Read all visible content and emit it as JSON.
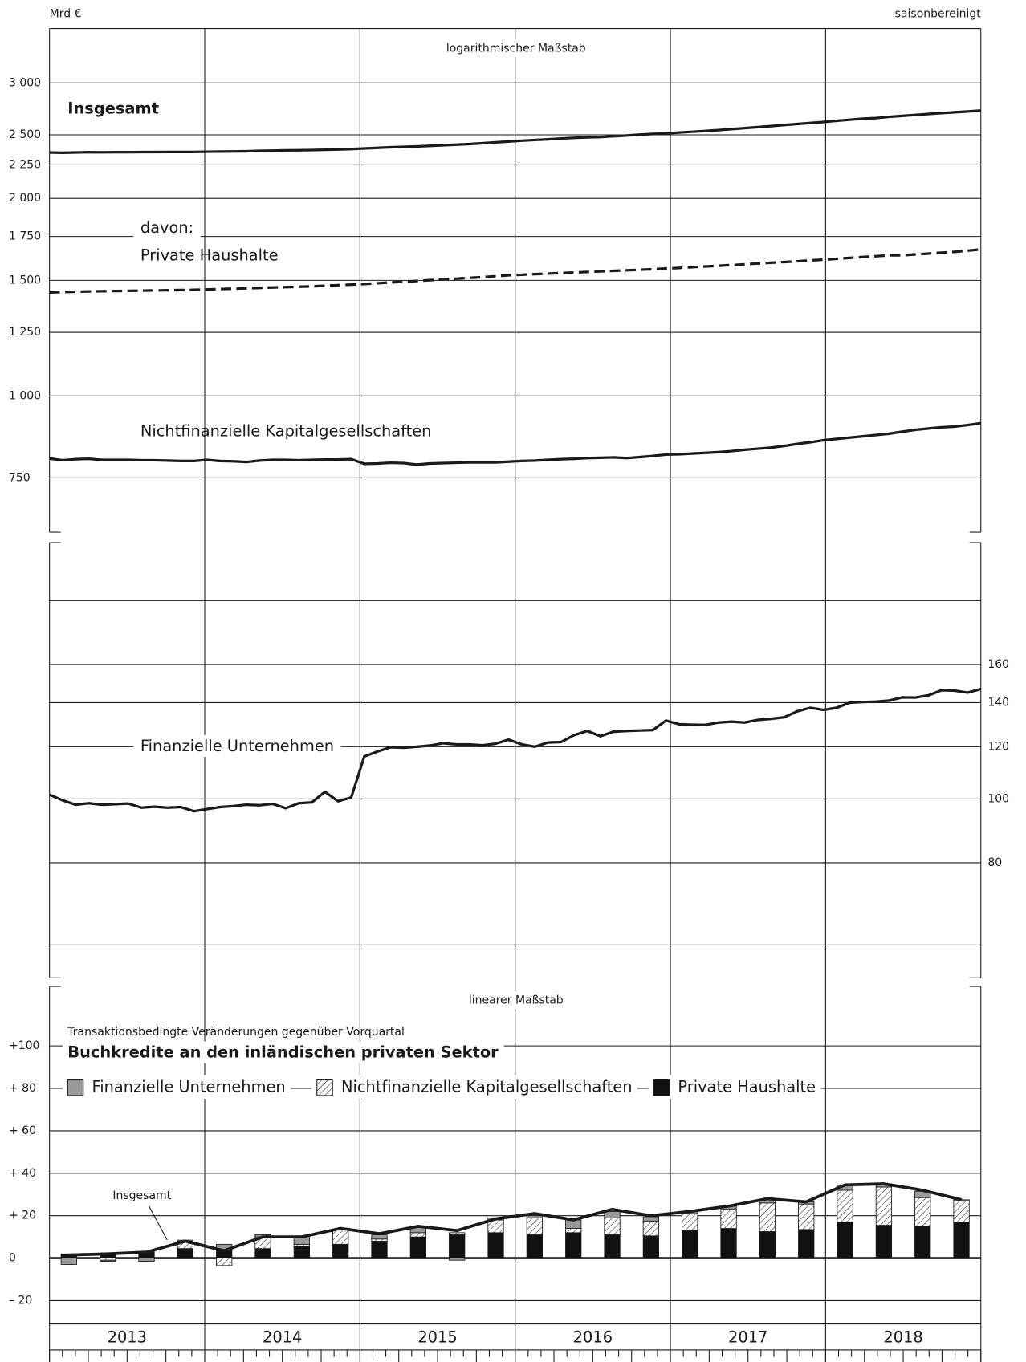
{
  "header": {
    "unit": "Mrd €",
    "note": "saisonbereinigt"
  },
  "chart_data": [
    {
      "type": "line",
      "scale_label": "logarithmischer Maßstab",
      "log_scale": true,
      "y_axis_side": "left",
      "annotation": "davon:",
      "x": [
        "2013-01",
        "2013-02",
        "2013-03",
        "2013-04",
        "2013-05",
        "2013-06",
        "2013-07",
        "2013-08",
        "2013-09",
        "2013-10",
        "2013-11",
        "2013-12",
        "2014-01",
        "2014-02",
        "2014-03",
        "2014-04",
        "2014-05",
        "2014-06",
        "2014-07",
        "2014-08",
        "2014-09",
        "2014-10",
        "2014-11",
        "2014-12",
        "2015-01",
        "2015-02",
        "2015-03",
        "2015-04",
        "2015-05",
        "2015-06",
        "2015-07",
        "2015-08",
        "2015-09",
        "2015-10",
        "2015-11",
        "2015-12",
        "2016-01",
        "2016-02",
        "2016-03",
        "2016-04",
        "2016-05",
        "2016-06",
        "2016-07",
        "2016-08",
        "2016-09",
        "2016-10",
        "2016-11",
        "2016-12",
        "2017-01",
        "2017-02",
        "2017-03",
        "2017-04",
        "2017-05",
        "2017-06",
        "2017-07",
        "2017-08",
        "2017-09",
        "2017-10",
        "2017-11",
        "2017-12",
        "2018-01",
        "2018-02",
        "2018-03",
        "2018-04",
        "2018-05",
        "2018-06",
        "2018-07",
        "2018-08",
        "2018-09",
        "2018-10",
        "2018-11",
        "2018-12"
      ],
      "ylim": [
        620,
        3630
      ],
      "yticks": [
        750,
        {
          "value": 1000,
          "label": "1 000"
        },
        {
          "value": 1250,
          "label": "1 250"
        },
        {
          "value": 1500,
          "label": "1 500"
        },
        {
          "value": 1750,
          "label": "1 750"
        },
        {
          "value": 2000,
          "label": "2 000"
        },
        {
          "value": 2250,
          "label": "2 250"
        },
        {
          "value": 2500,
          "label": "2 500"
        },
        {
          "value": 3000,
          "label": "3 000"
        }
      ],
      "series": [
        {
          "name": "Insgesamt",
          "color": "#1a1a1a",
          "dashed": false,
          "values": [
            2350,
            2347,
            2350,
            2352,
            2351,
            2352,
            2352,
            2353,
            2353,
            2354,
            2354,
            2354,
            2356,
            2357,
            2358,
            2360,
            2363,
            2365,
            2367,
            2368,
            2370,
            2372,
            2375,
            2378,
            2383,
            2388,
            2393,
            2397,
            2400,
            2405,
            2410,
            2415,
            2420,
            2427,
            2435,
            2442,
            2449,
            2455,
            2461,
            2468,
            2474,
            2478,
            2481,
            2488,
            2494,
            2502,
            2508,
            2513,
            2520,
            2527,
            2534,
            2542,
            2551,
            2560,
            2569,
            2578,
            2588,
            2597,
            2606,
            2615,
            2626,
            2636,
            2646,
            2651,
            2663,
            2672,
            2681,
            2690,
            2698,
            2706,
            2714,
            2722
          ]
        },
        {
          "name": "Private Haushalte",
          "color": "#1a1a1a",
          "dashed": true,
          "values": [
            1438,
            1440,
            1441,
            1443,
            1444,
            1445,
            1446,
            1447,
            1448,
            1449,
            1450,
            1451,
            1453,
            1455,
            1457,
            1459,
            1461,
            1463,
            1465,
            1467,
            1469,
            1472,
            1475,
            1478,
            1481,
            1485,
            1489,
            1493,
            1497,
            1501,
            1505,
            1509,
            1513,
            1517,
            1522,
            1527,
            1530,
            1533,
            1536,
            1539,
            1542,
            1545,
            1548,
            1551,
            1554,
            1557,
            1560,
            1564,
            1567,
            1571,
            1575,
            1579,
            1583,
            1587,
            1592,
            1596,
            1600,
            1604,
            1609,
            1613,
            1618,
            1623,
            1628,
            1633,
            1638,
            1638,
            1643,
            1648,
            1653,
            1658,
            1665,
            1672
          ]
        },
        {
          "name": "Nichtfinanzielle Kapitalgesellschaften",
          "color": "#1a1a1a",
          "dashed": false,
          "values": [
            803,
            798,
            801,
            802,
            799,
            799,
            799,
            798,
            798,
            797,
            796,
            796,
            799,
            796,
            795,
            793,
            797,
            799,
            799,
            798,
            799,
            800,
            800,
            801,
            788,
            789,
            791,
            790,
            786,
            789,
            790,
            791,
            792,
            792,
            792,
            794,
            796,
            797,
            799,
            801,
            802,
            804,
            805,
            806,
            804,
            807,
            810,
            814,
            815,
            817,
            819,
            821,
            824,
            828,
            831,
            834,
            839,
            845,
            850,
            856,
            860,
            864,
            868,
            872,
            876,
            882,
            888,
            892,
            896,
            898,
            903,
            909
          ]
        }
      ]
    },
    {
      "type": "line",
      "log_scale": true,
      "y_axis_side": "right",
      "x": [
        "2013-01",
        "2013-02",
        "2013-03",
        "2013-04",
        "2013-05",
        "2013-06",
        "2013-07",
        "2013-08",
        "2013-09",
        "2013-10",
        "2013-11",
        "2013-12",
        "2014-01",
        "2014-02",
        "2014-03",
        "2014-04",
        "2014-05",
        "2014-06",
        "2014-07",
        "2014-08",
        "2014-09",
        "2014-10",
        "2014-11",
        "2014-12",
        "2015-01",
        "2015-02",
        "2015-03",
        "2015-04",
        "2015-05",
        "2015-06",
        "2015-07",
        "2015-08",
        "2015-09",
        "2015-10",
        "2015-11",
        "2015-12",
        "2016-01",
        "2016-02",
        "2016-03",
        "2016-04",
        "2016-05",
        "2016-06",
        "2016-07",
        "2016-08",
        "2016-09",
        "2016-10",
        "2016-11",
        "2016-12",
        "2017-01",
        "2017-02",
        "2017-03",
        "2017-04",
        "2017-05",
        "2017-06",
        "2017-07",
        "2017-08",
        "2017-09",
        "2017-10",
        "2017-11",
        "2017-12",
        "2018-01",
        "2018-02",
        "2018-03",
        "2018-04",
        "2018-05",
        "2018-06",
        "2018-07",
        "2018-08",
        "2018-09",
        "2018-10",
        "2018-11",
        "2018-12"
      ],
      "ylim": [
        53.5,
        245
      ],
      "yticks": [
        80,
        100,
        120,
        140,
        160
      ],
      "minor_grid": [
        60,
        200
      ],
      "series": [
        {
          "name": "Finanzielle Unternehmen",
          "color": "#1a1a1a",
          "dashed": false,
          "values": [
            101.5,
            99.5,
            98,
            98.5,
            98,
            98.2,
            98.4,
            97,
            97.3,
            97,
            97.2,
            95.8,
            96.5,
            97.2,
            97.5,
            98,
            97.8,
            98.3,
            96.8,
            98.5,
            98.8,
            102.5,
            99.2,
            100.5,
            116,
            118,
            119.8,
            119.6,
            120,
            120.5,
            121.5,
            121,
            121,
            120.6,
            121.3,
            123,
            121,
            120,
            121.8,
            122,
            125,
            126.8,
            124.5,
            126.5,
            126.8,
            127,
            127.2,
            131.5,
            129.8,
            129.6,
            129.5,
            130.6,
            131,
            130.6,
            131.8,
            132.3,
            133,
            135.8,
            137.5,
            136.5,
            137.5,
            140,
            140.3,
            140.5,
            141,
            142.6,
            142.5,
            143.6,
            146.2,
            146,
            145,
            146.8
          ]
        }
      ]
    },
    {
      "type": "bar",
      "stacked": true,
      "scale_label": "linearer Maßstab",
      "subtitle": "Transaktionsbedingte Veränderungen gegenüber Vorquartal",
      "title": "Buchkredite an den inländischen privaten Sektor",
      "categories": [
        null,
        null,
        null,
        null,
        null,
        null,
        null,
        null,
        null,
        null,
        null,
        null,
        null,
        null,
        null,
        null,
        null,
        null,
        null,
        null,
        null,
        null,
        null,
        null
      ],
      "year_labels": [
        "2013",
        "2014",
        "2015",
        "2016",
        "2017",
        "2018"
      ],
      "ylim": [
        -31,
        128
      ],
      "yticks": [
        {
          "value": -20,
          "label": "– 20"
        },
        0,
        {
          "value": 20,
          "label": "+ 20"
        },
        {
          "value": 40,
          "label": "+ 40"
        },
        {
          "value": 60,
          "label": "+ 60"
        },
        {
          "value": 80,
          "label": "+ 80"
        },
        {
          "value": 100,
          "label": "+100"
        }
      ],
      "series": [
        {
          "name": "Finanzielle Unternehmen",
          "color": "#9a9a9a",
          "values": [
            -3,
            -0.5,
            -1.5,
            0.5,
            3,
            1,
            4,
            0,
            2,
            3,
            -1,
            1,
            1,
            4,
            3,
            2,
            1,
            1.5,
            1.5,
            1,
            2.5,
            1.5,
            3,
            0.5
          ]
        },
        {
          "name": "Nichtfinanzielle Kapitalgesellschaften",
          "color": "#1a1a1a",
          "pattern": "hatch",
          "values": [
            0,
            -1,
            0,
            3.5,
            -3.5,
            5.5,
            1,
            7,
            1,
            2,
            1,
            6,
            8,
            2,
            8,
            7,
            8,
            9,
            13.5,
            12,
            15,
            18,
            13.5,
            10
          ]
        },
        {
          "name": "Private Haushalte",
          "color": "#111111",
          "values": [
            2,
            2.5,
            3,
            4.5,
            3.5,
            4.5,
            5.5,
            6.5,
            8,
            10,
            11,
            12,
            11,
            12,
            11,
            10.5,
            13,
            14,
            12.5,
            13.5,
            17,
            15.5,
            15,
            17
          ]
        }
      ],
      "line": {
        "name": "Insgesamt",
        "color": "#1a1a1a",
        "values": [
          1.5,
          2,
          2.8,
          8,
          3.5,
          10,
          10,
          14,
          11.5,
          15,
          13,
          18.5,
          21,
          18,
          23,
          20,
          22,
          24.5,
          28,
          26.5,
          34.5,
          35,
          32,
          27.5
        ]
      }
    }
  ]
}
